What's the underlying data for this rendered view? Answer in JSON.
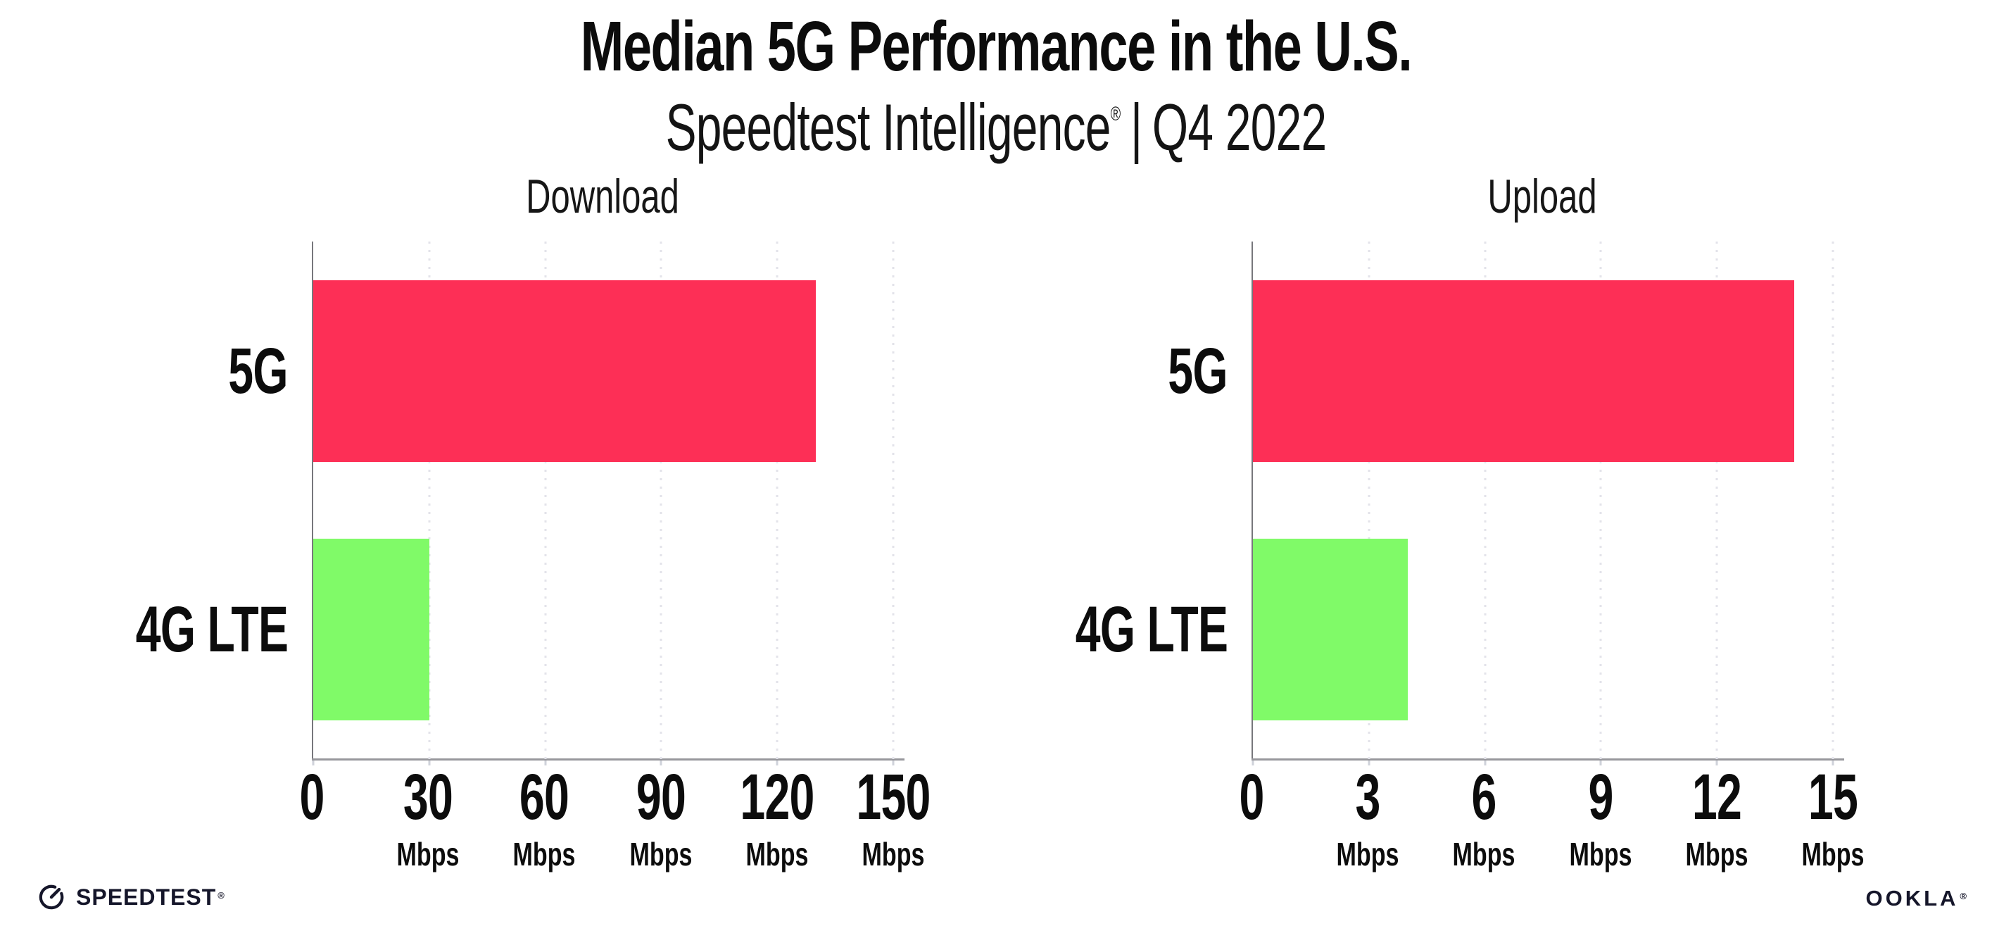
{
  "header": {
    "title": "Median 5G Performance in the U.S.",
    "subtitle": {
      "brand": "Speedtest Intelligence",
      "registered": "®",
      "separator": "|",
      "period": "Q4 2022"
    }
  },
  "chart_data": [
    {
      "type": "bar",
      "orientation": "horizontal",
      "title": "Download",
      "categories": [
        "5G",
        "4G LTE"
      ],
      "values": [
        130,
        30
      ],
      "unit": "Mbps",
      "xlim": [
        0,
        150
      ],
      "xticks": [
        0,
        30,
        60,
        90,
        120,
        150
      ],
      "tick_unit_label": "Mbps",
      "bar_colors": [
        "#fd2f56",
        "#80fa68"
      ],
      "grid": "dotted-vertical",
      "legend": "none"
    },
    {
      "type": "bar",
      "orientation": "horizontal",
      "title": "Upload",
      "categories": [
        "5G",
        "4G LTE"
      ],
      "values": [
        14,
        4
      ],
      "unit": "Mbps",
      "xlim": [
        0,
        15
      ],
      "xticks": [
        0,
        3,
        6,
        9,
        12,
        15
      ],
      "tick_unit_label": "Mbps",
      "bar_colors": [
        "#fd2f56",
        "#80fa68"
      ],
      "grid": "dotted-vertical",
      "legend": "none"
    }
  ],
  "footer": {
    "speedtest_wordmark": "SPEEDTEST",
    "speedtest_mark": "®",
    "ookla_wordmark": "OOKLA",
    "ookla_mark": "®"
  },
  "colors": {
    "background": "#ffffff",
    "bar_5g": "#fd2f56",
    "bar_4g_lte": "#80fa68",
    "spine": "#77777c",
    "axis_line": "#97979c",
    "gridline": "#e3e3ea",
    "text": "#0c0c0c",
    "logo": "#15162a"
  }
}
